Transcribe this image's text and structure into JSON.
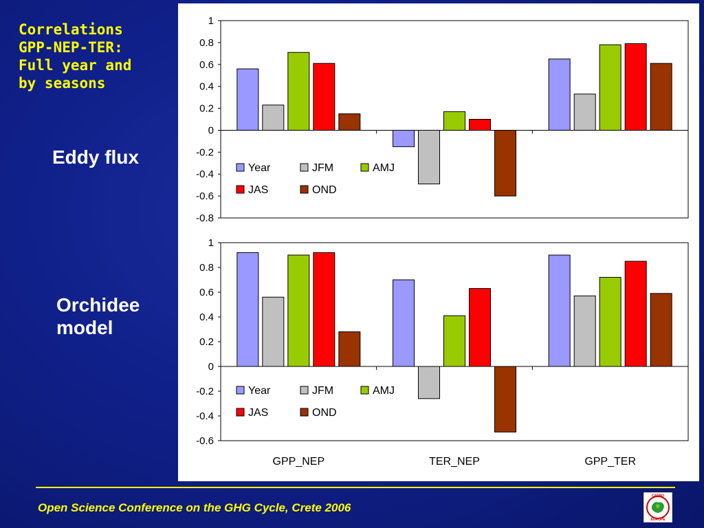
{
  "title_lines": [
    "Correlations",
    "GPP-NEP-TER:",
    "Full year and",
    "by seasons"
  ],
  "labels": {
    "eddy": "Eddy flux",
    "orchidee_line1": "Orchidee",
    "orchidee_line2": "model"
  },
  "footer": "Open Science Conference on the GHG Cycle, Crete 2006",
  "logo_text": {
    "top": "CARBO",
    "bottom": "EUROPE"
  },
  "colors": {
    "Year": "#9999ff",
    "JFM": "#c0c0c0",
    "AMJ": "#99cc00",
    "JAS": "#ff0000",
    "OND": "#993300",
    "accent": "#ffff00"
  },
  "chart_data": [
    {
      "type": "bar",
      "categories": [
        "GPP_NEP",
        "TER_NEP",
        "GPP_TER"
      ],
      "show_category_labels": false,
      "ylim": [
        -0.8,
        1
      ],
      "yticks": [
        1,
        0.8,
        0.6,
        0.4,
        0.2,
        0,
        -0.2,
        -0.4,
        -0.6,
        -0.8
      ],
      "legend_position": "lower-left inside plot",
      "series": [
        {
          "name": "Year",
          "values": [
            0.56,
            -0.15,
            0.65
          ]
        },
        {
          "name": "JFM",
          "values": [
            0.23,
            -0.49,
            0.33
          ]
        },
        {
          "name": "AMJ",
          "values": [
            0.71,
            0.17,
            0.78
          ]
        },
        {
          "name": "JAS",
          "values": [
            0.61,
            0.1,
            0.79
          ]
        },
        {
          "name": "OND",
          "values": [
            0.15,
            -0.6,
            0.61
          ]
        }
      ]
    },
    {
      "type": "bar",
      "categories": [
        "GPP_NEP",
        "TER_NEP",
        "GPP_TER"
      ],
      "show_category_labels": true,
      "ylim": [
        -0.6,
        1
      ],
      "yticks": [
        1,
        0.8,
        0.6,
        0.4,
        0.2,
        0,
        -0.2,
        -0.4,
        -0.6
      ],
      "legend_position": "lower-left inside plot",
      "series": [
        {
          "name": "Year",
          "values": [
            0.92,
            0.7,
            0.9
          ]
        },
        {
          "name": "JFM",
          "values": [
            0.56,
            -0.26,
            0.57
          ]
        },
        {
          "name": "AMJ",
          "values": [
            0.9,
            0.41,
            0.72
          ]
        },
        {
          "name": "JAS",
          "values": [
            0.92,
            0.63,
            0.85
          ]
        },
        {
          "name": "OND",
          "values": [
            0.28,
            -0.53,
            0.59
          ]
        }
      ]
    }
  ]
}
